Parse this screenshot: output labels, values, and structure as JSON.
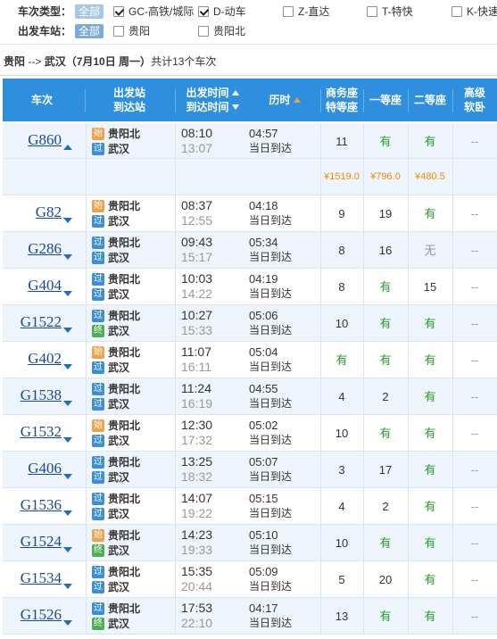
{
  "filter": {
    "type_label": "车次类型：",
    "all_label": "全部",
    "types": [
      {
        "label": "GC-高铁/城际",
        "checked": true
      },
      {
        "label": "D-动车",
        "checked": true
      },
      {
        "label": "Z-直达",
        "checked": false
      },
      {
        "label": "T-特快",
        "checked": false
      },
      {
        "label": "K-快速",
        "checked": false
      }
    ],
    "station_label": "出发车站：",
    "station_all_label": "全部",
    "stations": [
      {
        "label": "贵阳",
        "checked": false
      },
      {
        "label": "贵阳北",
        "checked": false
      }
    ]
  },
  "route": {
    "from": "贵阳",
    "arrow": " --> ",
    "to": "武汉",
    "date": "（7月10日  周一）",
    "count": "共计13个车次"
  },
  "header": {
    "train": "车次",
    "dep_station": "出发站",
    "arr_station": "到达站",
    "dep_time": "出发时间",
    "arr_time": "到达时间",
    "duration": "历时",
    "business_1": "商务座",
    "business_2": "特等座",
    "first": "一等座",
    "second": "二等座",
    "soft_1": "高级",
    "soft_2": "软卧"
  },
  "rows": [
    {
      "code": "G860",
      "expanded": true,
      "from_type": "始",
      "from": "贵阳北",
      "to_type": "过",
      "to": "武汉",
      "dep": "08:10",
      "arr": "13:07",
      "dur": "04:57",
      "arrive_day": "当日到达",
      "business": "11",
      "first": "有",
      "second": "有",
      "soft": "--"
    },
    {
      "code": "G82",
      "from_type": "始",
      "from": "贵阳北",
      "to_type": "过",
      "to": "武汉",
      "dep": "08:37",
      "arr": "12:55",
      "dur": "04:18",
      "arrive_day": "当日到达",
      "business": "9",
      "first": "19",
      "second": "有",
      "soft": "--"
    },
    {
      "code": "G286",
      "from_type": "过",
      "from": "贵阳北",
      "to_type": "过",
      "to": "武汉",
      "dep": "09:43",
      "arr": "15:17",
      "dur": "05:34",
      "arrive_day": "当日到达",
      "business": "8",
      "first": "16",
      "second": "无",
      "soft": "--"
    },
    {
      "code": "G404",
      "from_type": "过",
      "from": "贵阳北",
      "to_type": "过",
      "to": "武汉",
      "dep": "10:03",
      "arr": "14:22",
      "dur": "04:19",
      "arrive_day": "当日到达",
      "business": "8",
      "first": "有",
      "second": "15",
      "soft": "--"
    },
    {
      "code": "G1522",
      "from_type": "过",
      "from": "贵阳北",
      "to_type": "终",
      "to": "武汉",
      "dep": "10:27",
      "arr": "15:33",
      "dur": "05:06",
      "arrive_day": "当日到达",
      "business": "10",
      "first": "有",
      "second": "有",
      "soft": "--"
    },
    {
      "code": "G402",
      "from_type": "始",
      "from": "贵阳北",
      "to_type": "过",
      "to": "武汉",
      "dep": "11:07",
      "arr": "16:11",
      "dur": "05:04",
      "arrive_day": "当日到达",
      "business": "有",
      "first": "有",
      "second": "有",
      "soft": "--"
    },
    {
      "code": "G1538",
      "from_type": "过",
      "from": "贵阳北",
      "to_type": "过",
      "to": "武汉",
      "dep": "11:24",
      "arr": "16:19",
      "dur": "04:55",
      "arrive_day": "当日到达",
      "business": "4",
      "first": "2",
      "second": "有",
      "soft": "--"
    },
    {
      "code": "G1532",
      "from_type": "始",
      "from": "贵阳北",
      "to_type": "过",
      "to": "武汉",
      "dep": "12:30",
      "arr": "17:32",
      "dur": "05:02",
      "arrive_day": "当日到达",
      "business": "10",
      "first": "有",
      "second": "有",
      "soft": "--"
    },
    {
      "code": "G406",
      "from_type": "过",
      "from": "贵阳北",
      "to_type": "过",
      "to": "武汉",
      "dep": "13:25",
      "arr": "18:32",
      "dur": "05:07",
      "arrive_day": "当日到达",
      "business": "3",
      "first": "17",
      "second": "有",
      "soft": "--"
    },
    {
      "code": "G1536",
      "from_type": "过",
      "from": "贵阳北",
      "to_type": "过",
      "to": "武汉",
      "dep": "14:07",
      "arr": "19:22",
      "dur": "05:15",
      "arrive_day": "当日到达",
      "business": "4",
      "first": "2",
      "second": "有",
      "soft": "--"
    },
    {
      "code": "G1524",
      "from_type": "始",
      "from": "贵阳北",
      "to_type": "终",
      "to": "武汉",
      "dep": "14:23",
      "arr": "19:33",
      "dur": "05:10",
      "arrive_day": "当日到达",
      "business": "10",
      "first": "有",
      "second": "有",
      "soft": "--"
    },
    {
      "code": "G1534",
      "from_type": "过",
      "from": "贵阳北",
      "to_type": "过",
      "to": "武汉",
      "dep": "15:35",
      "arr": "20:44",
      "dur": "05:09",
      "arrive_day": "当日到达",
      "business": "5",
      "first": "20",
      "second": "有",
      "soft": "--"
    },
    {
      "code": "G1526",
      "from_type": "过",
      "from": "贵阳北",
      "to_type": "终",
      "to": "武汉",
      "dep": "17:53",
      "arr": "22:10",
      "dur": "04:17",
      "arrive_day": "当日到达",
      "business": "13",
      "first": "有",
      "second": "有",
      "soft": "--"
    }
  ],
  "price_row": {
    "business": "¥1519.0",
    "first": "¥796.0",
    "second": "¥480.5"
  }
}
